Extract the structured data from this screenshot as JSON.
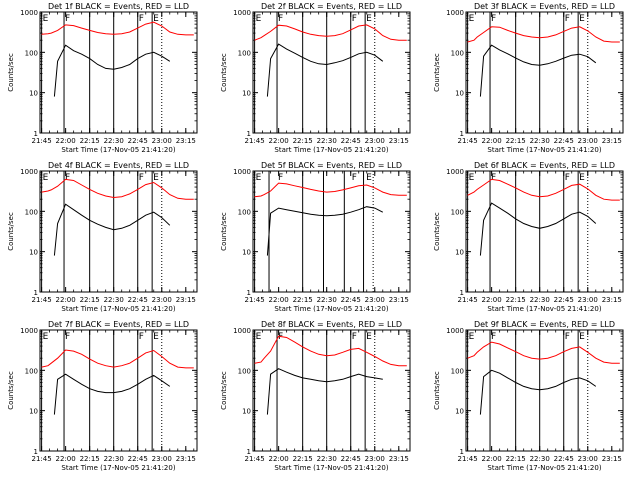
{
  "chart_data": {
    "type": "line",
    "yscale": "log",
    "ylim": [
      1,
      1000
    ],
    "y_ticks": [
      1,
      10,
      100,
      1000
    ],
    "y_tick_labels": [
      "1",
      "10",
      "100",
      "1000"
    ],
    "ylabel": "Counts/sec",
    "xlabel": "Start Time (17-Nov-05 21:41:20)",
    "x_tick_labels": [
      "21:45",
      "22:00",
      "22:15",
      "22:30",
      "22:45",
      "23:00",
      "23:15"
    ],
    "x_tick_minutes": [
      0,
      15,
      30,
      45,
      60,
      75,
      90
    ],
    "xlim_minutes": [
      -1,
      97
    ],
    "sample_x_minutes": [
      0,
      4,
      6,
      10,
      15,
      20,
      25,
      30,
      35,
      40,
      45,
      50,
      55,
      60,
      65,
      70,
      75,
      80,
      85,
      90,
      95
    ],
    "markers": [
      {
        "label": "E",
        "minute": 0
      },
      {
        "label": "F",
        "minute": 14
      },
      {
        "label": "F",
        "minute": 60
      },
      {
        "label": "E",
        "minute": 69
      }
    ],
    "panels": [
      {
        "title": "Det 1f BLACK = Events, RED = LLD",
        "segments_x": [
          [
            0,
            14
          ],
          [
            30,
            45
          ],
          [
            60,
            69
          ]
        ],
        "dotted_x": [
          75
        ],
        "series": [
          {
            "name": "Events",
            "color": "#000000",
            "start_minute": 8,
            "values": [
              null,
              null,
              null,
              60,
              150,
              110,
              90,
              70,
              50,
              40,
              38,
              42,
              50,
              70,
              90,
              100,
              80,
              60,
              null,
              null,
              null
            ]
          },
          {
            "name": "LLD",
            "color": "#ff0000",
            "start_minute": 0,
            "values": [
              280,
              290,
              300,
              350,
              480,
              460,
              400,
              350,
              310,
              290,
              280,
              290,
              320,
              400,
              500,
              560,
              450,
              320,
              280,
              270,
              270
            ]
          }
        ]
      },
      {
        "title": "Det 2f BLACK = Events, RED = LLD",
        "segments_x": [
          [
            0,
            14
          ],
          [
            30,
            45
          ],
          [
            60,
            69
          ]
        ],
        "dotted_x": [
          75
        ],
        "series": [
          {
            "name": "Events",
            "color": "#000000",
            "start_minute": 8,
            "values": [
              null,
              null,
              null,
              70,
              160,
              120,
              95,
              75,
              60,
              52,
              50,
              55,
              62,
              75,
              92,
              100,
              85,
              60,
              null,
              null,
              null
            ]
          },
          {
            "name": "LLD",
            "color": "#ff0000",
            "start_minute": 0,
            "values": [
              200,
              230,
              260,
              330,
              470,
              450,
              380,
              320,
              280,
              260,
              250,
              260,
              290,
              360,
              450,
              480,
              380,
              260,
              210,
              200,
              200
            ]
          }
        ]
      },
      {
        "title": "Det 3f BLACK = Events, RED = LLD",
        "segments_x": [
          [
            0,
            14
          ],
          [
            30,
            45
          ],
          [
            60,
            69
          ]
        ],
        "dotted_x": [
          75
        ],
        "series": [
          {
            "name": "Events",
            "color": "#000000",
            "start_minute": 8,
            "values": [
              null,
              null,
              null,
              80,
              150,
              115,
              92,
              72,
              58,
              50,
              48,
              52,
              60,
              72,
              85,
              90,
              78,
              55,
              null,
              null,
              null
            ]
          },
          {
            "name": "LLD",
            "color": "#ff0000",
            "start_minute": 0,
            "values": [
              180,
              200,
              240,
              310,
              430,
              420,
              350,
              300,
              260,
              240,
              230,
              240,
              270,
              330,
              400,
              430,
              340,
              240,
              190,
              180,
              180
            ]
          }
        ]
      },
      {
        "title": "Det 4f BLACK = Events, RED = LLD",
        "segments_x": [
          [
            0,
            14
          ],
          [
            30,
            45
          ],
          [
            60,
            69
          ]
        ],
        "dotted_x": [
          75
        ],
        "series": [
          {
            "name": "Events",
            "color": "#000000",
            "start_minute": 8,
            "values": [
              null,
              null,
              null,
              50,
              150,
              110,
              80,
              60,
              48,
              40,
              35,
              38,
              45,
              60,
              80,
              95,
              70,
              45,
              null,
              null,
              null
            ]
          },
          {
            "name": "LLD",
            "color": "#ff0000",
            "start_minute": 0,
            "values": [
              300,
              320,
              340,
              420,
              620,
              580,
              450,
              350,
              280,
              240,
              220,
              230,
              270,
              350,
              460,
              520,
              380,
              260,
              210,
              200,
              200
            ]
          }
        ]
      },
      {
        "title": "Det 5f BLACK = Events, RED = LLD",
        "segments_x": [
          [
            0,
            9
          ],
          [
            30,
            43
          ],
          [
            56,
            68
          ]
        ],
        "dotted_x": [
          74
        ],
        "series": [
          {
            "name": "Events",
            "color": "#000000",
            "start_minute": 8,
            "values": [
              null,
              null,
              null,
              90,
              120,
              110,
              100,
              92,
              85,
              80,
              78,
              80,
              85,
              95,
              110,
              130,
              120,
              95,
              null,
              null,
              null
            ]
          },
          {
            "name": "LLD",
            "color": "#ff0000",
            "start_minute": 0,
            "values": [
              230,
              240,
              260,
              320,
              500,
              480,
              430,
              390,
              350,
              320,
              300,
              310,
              340,
              380,
              430,
              450,
              380,
              300,
              260,
              250,
              250
            ]
          }
        ]
      },
      {
        "title": "Det 6f BLACK = Events, RED = LLD",
        "segments_x": [
          [
            0,
            14
          ],
          [
            30,
            45
          ],
          [
            60,
            69
          ]
        ],
        "dotted_x": [
          75
        ],
        "series": [
          {
            "name": "Events",
            "color": "#000000",
            "start_minute": 8,
            "values": [
              null,
              null,
              null,
              60,
              160,
              120,
              90,
              65,
              50,
              42,
              38,
              42,
              50,
              65,
              85,
              95,
              75,
              50,
              null,
              null,
              null
            ]
          },
          {
            "name": "LLD",
            "color": "#ff0000",
            "start_minute": 0,
            "values": [
              250,
              300,
              350,
              450,
              620,
              580,
              470,
              380,
              300,
              250,
              230,
              240,
              280,
              350,
              440,
              470,
              360,
              250,
              200,
              190,
              190
            ]
          }
        ]
      },
      {
        "title": "Det 7f BLACK = Events, RED = LLD",
        "segments_x": [
          [
            0,
            14
          ],
          [
            30,
            45
          ],
          [
            60,
            69
          ]
        ],
        "dotted_x": [
          75
        ],
        "series": [
          {
            "name": "Events",
            "color": "#000000",
            "start_minute": 8,
            "values": [
              null,
              null,
              null,
              60,
              80,
              60,
              45,
              35,
              30,
              28,
              28,
              30,
              35,
              45,
              60,
              75,
              55,
              40,
              null,
              null,
              null
            ]
          },
          {
            "name": "LLD",
            "color": "#ff0000",
            "start_minute": 0,
            "values": [
              120,
              130,
              150,
              200,
              320,
              300,
              250,
              190,
              150,
              130,
              120,
              130,
              150,
              200,
              270,
              310,
              220,
              150,
              120,
              115,
              115
            ]
          }
        ]
      },
      {
        "title": "Det 8f BLACK = Events, RED = LLD",
        "segments_x": [
          [
            0,
            14
          ],
          [
            30,
            45
          ],
          [
            60,
            69
          ]
        ],
        "dotted_x": [
          75
        ],
        "series": [
          {
            "name": "Events",
            "color": "#000000",
            "start_minute": 8,
            "values": [
              null,
              null,
              null,
              80,
              110,
              90,
              75,
              65,
              60,
              55,
              52,
              55,
              60,
              70,
              80,
              70,
              65,
              60,
              null,
              null,
              null
            ]
          },
          {
            "name": "LLD",
            "color": "#ff0000",
            "start_minute": 0,
            "values": [
              150,
              160,
              200,
              300,
              700,
              650,
              500,
              380,
              300,
              250,
              230,
              240,
              280,
              330,
              350,
              280,
              220,
              170,
              140,
              130,
              130
            ]
          }
        ]
      },
      {
        "title": "Det 9f BLACK = Events, RED = LLD",
        "segments_x": [
          [
            0,
            14
          ],
          [
            30,
            45
          ],
          [
            60,
            69
          ]
        ],
        "dotted_x": [
          75
        ],
        "series": [
          {
            "name": "Events",
            "color": "#000000",
            "start_minute": 8,
            "values": [
              null,
              null,
              null,
              70,
              100,
              85,
              65,
              50,
              40,
              35,
              33,
              35,
              40,
              50,
              60,
              65,
              55,
              40,
              null,
              null,
              null
            ]
          },
          {
            "name": "LLD",
            "color": "#ff0000",
            "start_minute": 0,
            "values": [
              200,
              230,
              280,
              380,
              500,
              450,
              360,
              290,
              230,
              200,
              190,
              200,
              230,
              290,
              350,
              380,
              280,
              200,
              160,
              150,
              150
            ]
          }
        ]
      }
    ]
  }
}
